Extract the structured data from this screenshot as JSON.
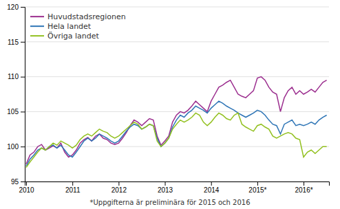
{
  "chart_data": {
    "type": "line",
    "footnote": "*Uppgifterna är preliminära för 2015 och 2016",
    "x": [
      2010.0,
      2010.083333,
      2010.166667,
      2010.25,
      2010.333333,
      2010.416667,
      2010.5,
      2010.583333,
      2010.666667,
      2010.75,
      2010.833333,
      2010.916667,
      2011.0,
      2011.083333,
      2011.166667,
      2011.25,
      2011.333333,
      2011.416667,
      2011.5,
      2011.583333,
      2011.666667,
      2011.75,
      2011.833333,
      2011.916667,
      2012.0,
      2012.083333,
      2012.166667,
      2012.25,
      2012.333333,
      2012.416667,
      2012.5,
      2012.583333,
      2012.666667,
      2012.75,
      2012.833333,
      2012.916667,
      2013.0,
      2013.083333,
      2013.166667,
      2013.25,
      2013.333333,
      2013.416667,
      2013.5,
      2013.583333,
      2013.666667,
      2013.75,
      2013.833333,
      2013.916667,
      2014.0,
      2014.083333,
      2014.166667,
      2014.25,
      2014.333333,
      2014.416667,
      2014.5,
      2014.583333,
      2014.666667,
      2014.75,
      2014.833333,
      2014.916667,
      2015.0,
      2015.083333,
      2015.166667,
      2015.25,
      2015.333333,
      2015.416667,
      2015.5,
      2015.583333,
      2015.666667,
      2015.75,
      2015.833333,
      2015.916667,
      2016.0,
      2016.083333,
      2016.166667,
      2016.25,
      2016.333333,
      2016.416667,
      2016.5
    ],
    "series": [
      {
        "name": "Huvudstadsregionen",
        "color": "#9b2d8e",
        "values": [
          97.5,
          98.8,
          99.2,
          100.0,
          100.3,
          99.5,
          99.8,
          100.1,
          99.8,
          100.5,
          99.2,
          98.5,
          98.8,
          99.5,
          100.5,
          101.0,
          101.3,
          100.8,
          101.5,
          101.8,
          101.2,
          101.0,
          100.5,
          100.3,
          100.5,
          101.2,
          102.0,
          103.0,
          103.8,
          103.5,
          103.0,
          103.5,
          104.0,
          103.8,
          101.5,
          100.2,
          100.8,
          101.5,
          103.5,
          104.5,
          105.0,
          104.8,
          105.2,
          105.8,
          106.5,
          106.0,
          105.5,
          105.0,
          106.5,
          107.5,
          108.5,
          108.8,
          109.2,
          109.5,
          108.5,
          107.5,
          107.2,
          107.0,
          107.5,
          108.0,
          109.8,
          110.0,
          109.5,
          108.5,
          107.8,
          107.5,
          105.0,
          107.0,
          108.0,
          108.5,
          107.5,
          108.0,
          107.5,
          107.8,
          108.2,
          107.8,
          108.5,
          109.2,
          109.5
        ]
      },
      {
        "name": "Hela landet",
        "color": "#2e75b6",
        "values": [
          97.2,
          98.2,
          98.8,
          99.5,
          99.8,
          99.5,
          100.0,
          100.2,
          99.8,
          100.2,
          99.5,
          98.8,
          98.5,
          99.2,
          100.0,
          100.8,
          101.2,
          100.8,
          101.2,
          101.8,
          101.5,
          101.2,
          100.8,
          100.5,
          100.8,
          101.5,
          102.2,
          102.8,
          103.2,
          103.0,
          102.5,
          102.8,
          103.2,
          103.0,
          101.2,
          100.0,
          100.5,
          101.2,
          102.8,
          103.8,
          104.5,
          104.2,
          104.8,
          105.2,
          105.8,
          105.5,
          105.2,
          104.8,
          105.5,
          106.0,
          106.5,
          106.2,
          105.8,
          105.5,
          105.2,
          104.8,
          104.5,
          104.2,
          104.5,
          104.8,
          105.2,
          105.0,
          104.5,
          103.8,
          103.2,
          103.0,
          101.8,
          103.2,
          103.5,
          103.8,
          103.0,
          103.2,
          103.0,
          103.2,
          103.5,
          103.2,
          103.8,
          104.2,
          104.5
        ]
      },
      {
        "name": "Övriga landet",
        "color": "#92c01f",
        "values": [
          97.0,
          97.8,
          98.5,
          99.2,
          99.8,
          99.5,
          100.0,
          100.5,
          100.2,
          100.8,
          100.5,
          100.2,
          99.8,
          100.2,
          101.0,
          101.5,
          101.8,
          101.5,
          102.0,
          102.5,
          102.2,
          102.0,
          101.5,
          101.2,
          101.5,
          102.0,
          102.5,
          103.0,
          103.5,
          103.2,
          102.5,
          102.8,
          103.2,
          103.0,
          100.8,
          100.0,
          100.5,
          101.2,
          102.5,
          103.2,
          103.8,
          103.5,
          103.8,
          104.2,
          104.8,
          104.5,
          103.5,
          103.0,
          103.5,
          104.2,
          104.8,
          104.5,
          104.0,
          103.8,
          104.5,
          104.8,
          103.2,
          102.8,
          102.5,
          102.2,
          103.0,
          103.2,
          102.8,
          102.5,
          101.5,
          101.2,
          101.5,
          101.8,
          102.0,
          101.8,
          101.2,
          101.0,
          98.5,
          99.2,
          99.5,
          99.0,
          99.5,
          100.0,
          100.0
        ]
      }
    ],
    "xlim": [
      2009.97,
      2016.55
    ],
    "xticks": [
      2010,
      2011,
      2012,
      2013,
      2014,
      {
        "value": 2015,
        "label": "2015*"
      },
      {
        "value": 2016,
        "label": "2016*"
      }
    ],
    "ylim": [
      95,
      120
    ],
    "yticks": [
      95,
      100,
      105,
      110,
      115,
      120
    ],
    "grid": true,
    "legend": "upper left"
  }
}
